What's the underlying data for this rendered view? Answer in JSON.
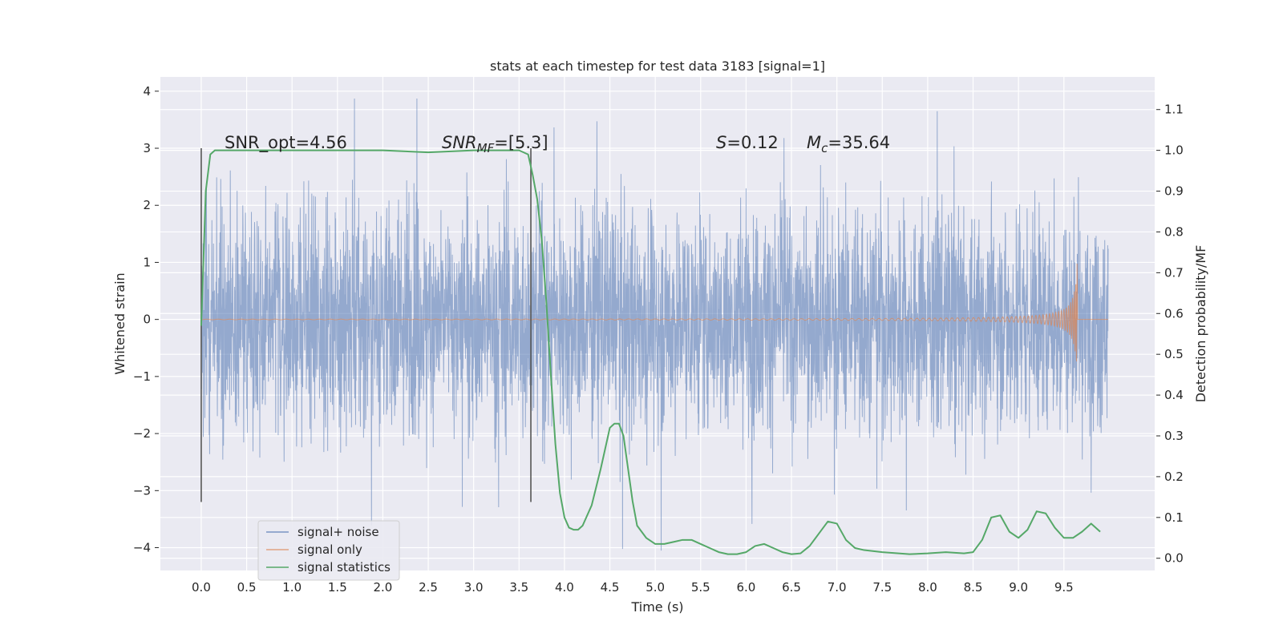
{
  "chart_data": {
    "type": "line",
    "title": "stats at each timestep for test data 3183 [signal=1]",
    "xlabel": "Time (s)",
    "ylabel": "Whitened strain",
    "ylabel_right": "Detection probability/MF",
    "xlim": [
      -0.45,
      10.5
    ],
    "ylim": [
      -4.4,
      4.25
    ],
    "ylim_right": [
      -0.03,
      1.18
    ],
    "x_ticks": [
      "0.0",
      "0.5",
      "1.0",
      "1.5",
      "2.0",
      "2.5",
      "3.0",
      "3.5",
      "4.0",
      "4.5",
      "5.0",
      "5.5",
      "6.0",
      "6.5",
      "7.0",
      "7.5",
      "8.0",
      "8.5",
      "9.0",
      "9.5"
    ],
    "y_ticks": [
      "−4",
      "−3",
      "−2",
      "−1",
      "0",
      "1",
      "2",
      "3",
      "4"
    ],
    "y_ticks_right": [
      "0.0",
      "0.1",
      "0.2",
      "0.3",
      "0.4",
      "0.5",
      "0.6",
      "0.7",
      "0.8",
      "0.9",
      "1.0",
      "1.1"
    ],
    "grid": true,
    "legend_position": "lower-left",
    "annotations": {
      "snr_opt": "SNR_opt=4.56",
      "snr_mf_base": "SNR",
      "snr_mf_sub": "MF",
      "snr_mf_value": "=[5.3]",
      "s_symbol": "S",
      "s_value": "=0.12",
      "mc_symbol": "M",
      "mc_sub": "c",
      "mc_value": "=35.64"
    },
    "vlines": [
      0.0,
      3.63
    ],
    "series": [
      {
        "name": "signal+ noise",
        "color": "#4c72b0",
        "description": "whitened noisy strain, ~1 sample per 0.0025 s, amplitude within about ±3.9",
        "x_range": [
          0.0,
          9.99
        ],
        "y_range": [
          -4.05,
          3.87
        ]
      },
      {
        "name": "signal only",
        "color": "#dd8452",
        "description": "chirp waveform, near zero until ~9.0 s, growing to peak ~1.25 at 9.65 s then ending",
        "x_range": [
          0.0,
          9.99
        ],
        "peak": {
          "x": 9.65,
          "y": 1.25
        }
      },
      {
        "name": "signal statistics",
        "color": "#55a868",
        "axis": "right",
        "x": [
          0.0,
          0.05,
          0.1,
          0.15,
          0.2,
          0.3,
          0.5,
          1.0,
          1.5,
          2.0,
          2.5,
          3.0,
          3.3,
          3.5,
          3.6,
          3.65,
          3.7,
          3.75,
          3.8,
          3.85,
          3.9,
          3.95,
          4.0,
          4.05,
          4.1,
          4.15,
          4.2,
          4.3,
          4.4,
          4.5,
          4.55,
          4.6,
          4.65,
          4.7,
          4.75,
          4.8,
          4.9,
          5.0,
          5.1,
          5.2,
          5.3,
          5.4,
          5.5,
          5.6,
          5.7,
          5.8,
          5.9,
          6.0,
          6.1,
          6.2,
          6.3,
          6.4,
          6.5,
          6.6,
          6.7,
          6.8,
          6.9,
          7.0,
          7.1,
          7.2,
          7.3,
          7.5,
          7.8,
          8.0,
          8.2,
          8.4,
          8.5,
          8.6,
          8.7,
          8.8,
          8.9,
          9.0,
          9.1,
          9.2,
          9.3,
          9.4,
          9.5,
          9.6,
          9.7,
          9.8,
          9.9
        ],
        "values": [
          0.57,
          0.9,
          0.99,
          1.0,
          1.0,
          1.0,
          1.0,
          1.0,
          1.0,
          1.0,
          0.995,
          1.0,
          1.0,
          1.0,
          0.99,
          0.94,
          0.88,
          0.78,
          0.63,
          0.45,
          0.28,
          0.16,
          0.1,
          0.075,
          0.07,
          0.07,
          0.08,
          0.13,
          0.22,
          0.32,
          0.33,
          0.33,
          0.3,
          0.22,
          0.14,
          0.08,
          0.05,
          0.035,
          0.035,
          0.04,
          0.045,
          0.045,
          0.035,
          0.025,
          0.015,
          0.01,
          0.01,
          0.015,
          0.03,
          0.035,
          0.025,
          0.015,
          0.01,
          0.012,
          0.03,
          0.06,
          0.09,
          0.085,
          0.045,
          0.025,
          0.02,
          0.015,
          0.01,
          0.012,
          0.015,
          0.012,
          0.015,
          0.045,
          0.1,
          0.105,
          0.065,
          0.05,
          0.07,
          0.115,
          0.11,
          0.075,
          0.05,
          0.05,
          0.065,
          0.085,
          0.065
        ]
      }
    ]
  }
}
